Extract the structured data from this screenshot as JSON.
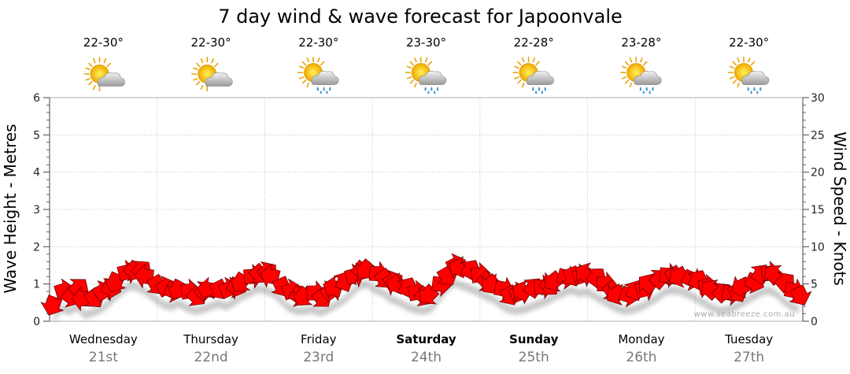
{
  "chart_data": {
    "type": "line",
    "title": "7 day wind & wave forecast for Japoonvale",
    "ylabel_left": "Wave Height - Metres",
    "ylabel_right": "Wind Speed - Knots",
    "ylim_left": [
      0,
      6
    ],
    "ylim_right": [
      0,
      30
    ],
    "yticks_left": [
      "0",
      "1",
      "2",
      "3",
      "4",
      "5",
      "6"
    ],
    "yticks_right": [
      "0",
      "5",
      "10",
      "15",
      "20",
      "25",
      "30"
    ],
    "grid": true,
    "days": [
      {
        "day": "Wednesday",
        "date": "21st",
        "temp": "22-30°",
        "icon": "sun-cloud-icon",
        "bold": false
      },
      {
        "day": "Thursday",
        "date": "22nd",
        "temp": "22-30°",
        "icon": "sun-cloud-icon",
        "bold": false
      },
      {
        "day": "Friday",
        "date": "23rd",
        "temp": "22-30°",
        "icon": "sun-cloud-rain-icon",
        "bold": false
      },
      {
        "day": "Saturday",
        "date": "24th",
        "temp": "23-30°",
        "icon": "sun-cloud-rain-icon",
        "bold": true
      },
      {
        "day": "Sunday",
        "date": "25th",
        "temp": "22-28°",
        "icon": "sun-cloud-rain-icon",
        "bold": true
      },
      {
        "day": "Monday",
        "date": "26th",
        "temp": "23-28°",
        "icon": "sun-cloud-rain-icon",
        "bold": false
      },
      {
        "day": "Tuesday",
        "date": "27th",
        "temp": "22-30°",
        "icon": "sun-cloud-rain-icon",
        "bold": false
      }
    ],
    "series": [
      {
        "name": "Wind Speed",
        "unit": "knots",
        "color": "#ff0000",
        "values": [
          2.5,
          4.0,
          3.5,
          4.2,
          3.0,
          3.4,
          3.8,
          4.6,
          5.6,
          6.5,
          7.0,
          6.6,
          6.0,
          5.2,
          4.4,
          4.2,
          4.6,
          4.0,
          3.6,
          3.8,
          4.2,
          4.6,
          4.2,
          4.8,
          5.5,
          6.0,
          6.6,
          6.4,
          6.0,
          5.0,
          4.0,
          3.6,
          3.6,
          3.8,
          3.4,
          3.8,
          4.4,
          5.0,
          6.0,
          7.0,
          7.2,
          6.4,
          6.0,
          5.2,
          4.8,
          4.2,
          3.8,
          3.6,
          3.8,
          5.0,
          6.4,
          7.4,
          7.0,
          6.6,
          6.2,
          5.6,
          5.2,
          4.4,
          3.8,
          3.6,
          3.8,
          4.2,
          4.6,
          5.0,
          5.6,
          6.0,
          6.4,
          6.0,
          6.2,
          5.6,
          5.0,
          4.4,
          3.8,
          3.6,
          3.8,
          4.2,
          4.8,
          5.4,
          6.2,
          6.4,
          6.2,
          5.8,
          5.2,
          4.6,
          4.0,
          3.6,
          3.8,
          4.2,
          4.8,
          5.4,
          6.0,
          6.4,
          6.0,
          5.0,
          4.2,
          3.8
        ]
      }
    ],
    "watermark": "www.seabreeze.com.au"
  }
}
